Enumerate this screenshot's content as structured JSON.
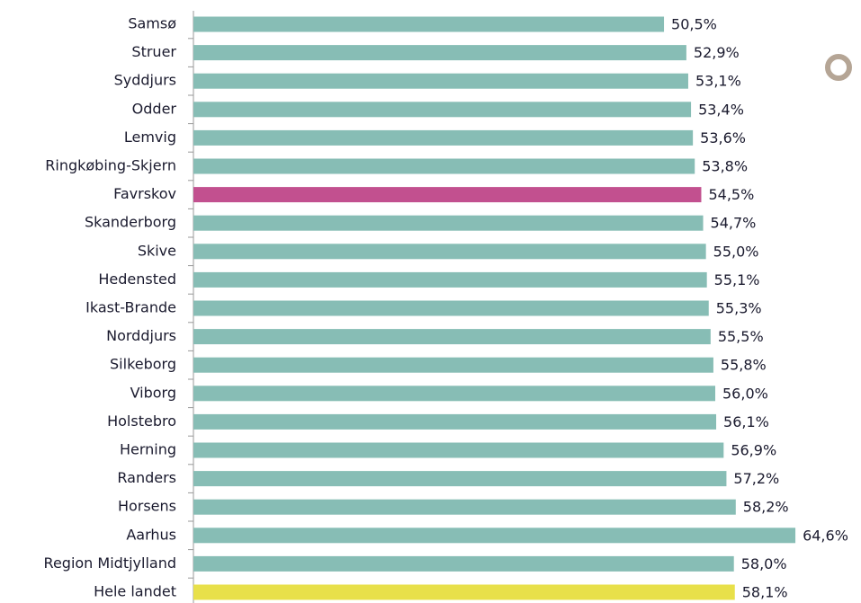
{
  "chart_data": {
    "type": "bar",
    "orientation": "horizontal",
    "categories": [
      "Samsø",
      "Struer",
      "Syddjurs",
      "Odder",
      "Lemvig",
      "Ringkøbing-Skjern",
      "Favrskov",
      "Skanderborg",
      "Skive",
      "Hedensted",
      "Ikast-Brande",
      "Norddjurs",
      "Silkeborg",
      "Viborg",
      "Holstebro",
      "Herning",
      "Randers",
      "Horsens",
      "Aarhus",
      "Region Midtjylland",
      "Hele landet"
    ],
    "values": [
      50.5,
      52.9,
      53.1,
      53.4,
      53.6,
      53.8,
      54.5,
      54.7,
      55.0,
      55.1,
      55.3,
      55.5,
      55.8,
      56.0,
      56.1,
      56.9,
      57.2,
      58.2,
      64.6,
      58.0,
      58.1
    ],
    "value_labels": [
      "50,5%",
      "52,9%",
      "53,1%",
      "53,4%",
      "53,6%",
      "53,8%",
      "54,5%",
      "54,7%",
      "55,0%",
      "55,1%",
      "55,3%",
      "55,5%",
      "55,8%",
      "56,0%",
      "56,1%",
      "56,9%",
      "57,2%",
      "58,2%",
      "64,6%",
      "58,0%",
      "58,1%"
    ],
    "colors": [
      "#87bdb5",
      "#87bdb5",
      "#87bdb5",
      "#87bdb5",
      "#87bdb5",
      "#87bdb5",
      "#c2508f",
      "#87bdb5",
      "#87bdb5",
      "#87bdb5",
      "#87bdb5",
      "#87bdb5",
      "#87bdb5",
      "#87bdb5",
      "#87bdb5",
      "#87bdb5",
      "#87bdb5",
      "#87bdb5",
      "#87bdb5",
      "#87bdb5",
      "#e8e04a"
    ],
    "xlim": [
      0,
      70
    ]
  }
}
